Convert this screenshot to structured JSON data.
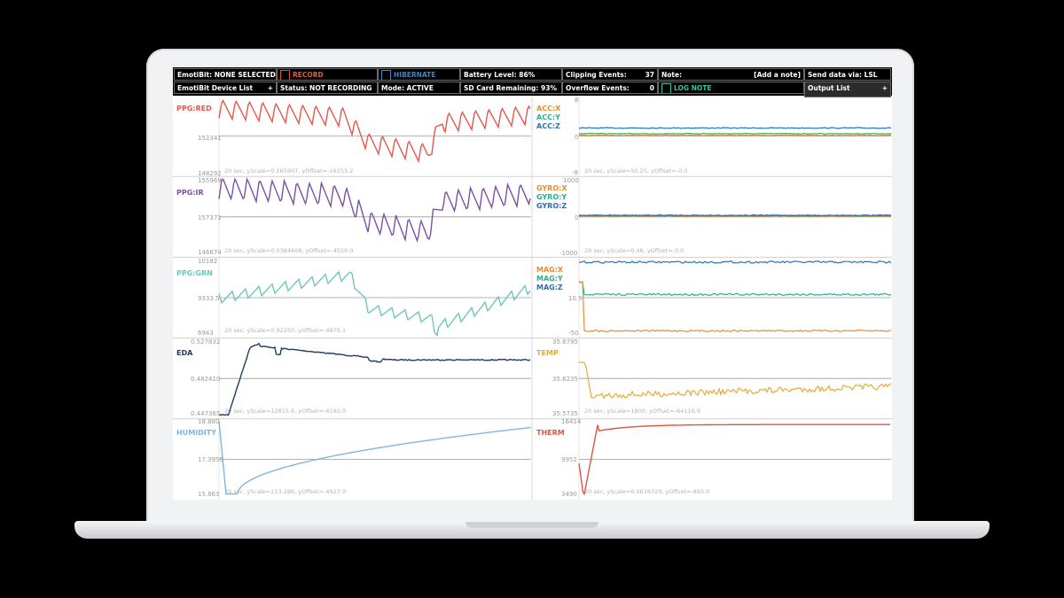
{
  "topbar": {
    "device_status": "EmotiBit: NONE SELECTED",
    "device_list": "EmotiBit Device List",
    "record": "RECORD",
    "status": "Status: NOT RECORDING",
    "hibernate": "HIBERNATE",
    "mode": "Mode: ACTIVE",
    "battery": "Battery Level: 86%",
    "sd_card": "SD Card Remaining: 93%",
    "clipping_label": "Clipping Events:",
    "clipping_value": "37",
    "overflow_label": "Overflow Events:",
    "overflow_value": "0",
    "note_label": "Note:",
    "add_note": "[Add a note]",
    "log_note": "LOG NOTE",
    "send_data": "Send data via: LSL",
    "output_list": "Output List",
    "plus": "+"
  },
  "colors": {
    "red": "#e5584a",
    "purple": "#7e4fa8",
    "teal": "#6fc7b9",
    "navy": "#1f3b63",
    "lightblue": "#7fb6e0",
    "orange": "#e98b2f",
    "green": "#27b08c",
    "blue": "#2a70b0",
    "yellow": "#e8a938",
    "therm": "#e0533f"
  },
  "left_panels": [
    {
      "label": "PPG:RED",
      "top": "",
      "mid": "152341",
      "bottom": "148292",
      "info": "20 sec, yScale=0.165907, yOffset=-16155.2"
    },
    {
      "label": "PPG:IR",
      "top": "155969",
      "mid": "157372",
      "bottom": "146674",
      "info": "20 sec, yScale=0.0384608, yOffset=-4550.0"
    },
    {
      "label": "PPG:GRN",
      "top": "10182",
      "mid": "9333.5",
      "bottom": "6943",
      "info": "20 sec, yScale=0.92350, yOffset=-4975.1"
    },
    {
      "label": "EDA",
      "top": "0.527832",
      "mid": "0.482410",
      "bottom": "0.447365",
      "info": "20 sec, yScale=12815.6, yOffset=-6192.0"
    },
    {
      "label": "HUMIDITY",
      "top": "18.880",
      "mid": "17.3955",
      "bottom": "15.863",
      "info": "20 sec, yScale=213.286, yOffset=-4927.0"
    }
  ],
  "right_panels": [
    {
      "labels": [
        "ACC:X",
        "ACC:Y",
        "ACC:Z"
      ],
      "top": "8",
      "mid": "0",
      "bottom": "-8",
      "info": "20 sec, yScale=50.25, yOffset=-0.0"
    },
    {
      "labels": [
        "GYRO:X",
        "GYRO:Y",
        "GYRO:Z"
      ],
      "top": "1000",
      "mid": "0",
      "bottom": "-1000",
      "info": "20 sec, yScale=0.48, yOffset=-0.0"
    },
    {
      "labels": [
        "MAG:X",
        "MAG:Y",
        "MAG:Z"
      ],
      "top": "",
      "mid": "10.5",
      "bottom": "-50",
      "info": ""
    },
    {
      "labels": [
        "TEMP"
      ],
      "top": "35.6795",
      "mid": "35.6235",
      "bottom": "35.5735",
      "info": "20 sec, yScale=1800, yOffset=-64116.9"
    },
    {
      "labels": [
        "THERM"
      ],
      "top": "16414",
      "mid": "9952",
      "bottom": "3490",
      "info": "20 sec, yScale=0.0636329, yOffset=-693.0"
    }
  ]
}
